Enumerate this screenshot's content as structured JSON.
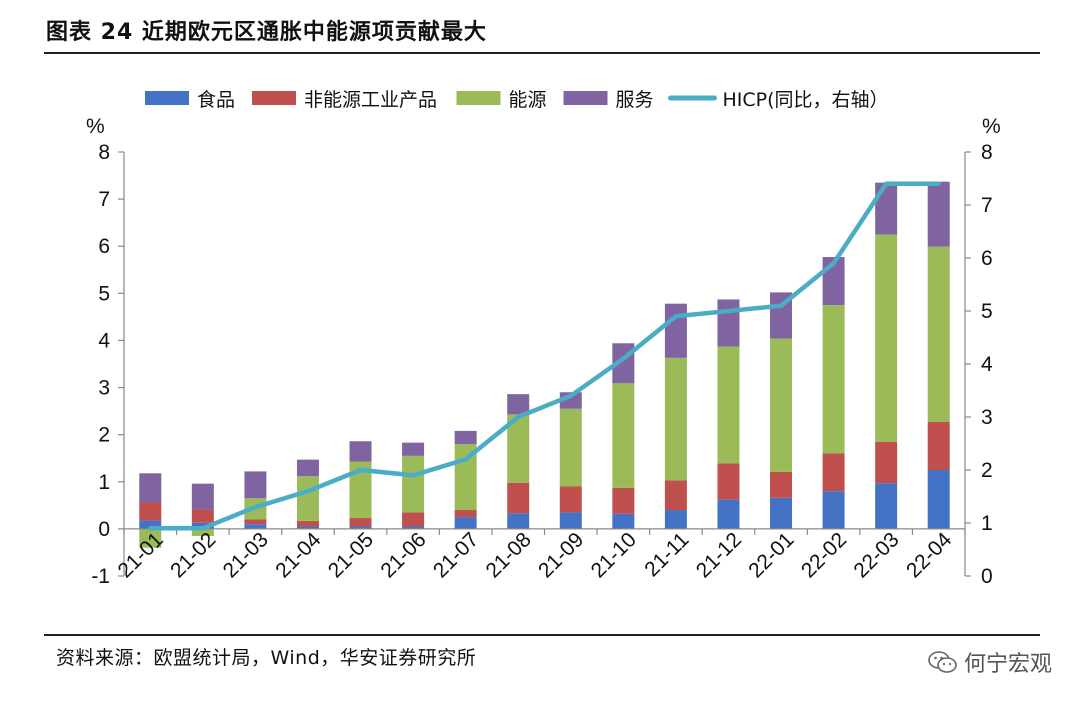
{
  "header": {
    "title": "图表 24  近期欧元区通胀中能源项贡献最大"
  },
  "footer": {
    "source": "资料来源：欧盟统计局，Wind，华安证券研究所",
    "watermark": "何宁宏观"
  },
  "colors": {
    "food": "#4472C4",
    "industrial": "#C0504D",
    "energy": "#9BBB59",
    "services": "#8064A2",
    "hicp": "#4BACC6"
  },
  "chart_data": {
    "type": "bar",
    "stacked": true,
    "categories": [
      "21-01",
      "21-02",
      "21-03",
      "21-04",
      "21-05",
      "21-06",
      "21-07",
      "21-08",
      "21-09",
      "21-10",
      "21-11",
      "21-12",
      "22-01",
      "22-02",
      "22-03",
      "22-04"
    ],
    "series": [
      {
        "name": "食品",
        "values": [
          0.18,
          0.13,
          0.1,
          0.05,
          0.05,
          0.05,
          0.25,
          0.33,
          0.35,
          0.32,
          0.4,
          0.62,
          0.66,
          0.8,
          0.97,
          1.25
        ]
      },
      {
        "name": "非能源工业产品",
        "values": [
          0.38,
          0.28,
          0.1,
          0.12,
          0.18,
          0.3,
          0.15,
          0.65,
          0.55,
          0.55,
          0.63,
          0.77,
          0.55,
          0.8,
          0.88,
          1.02
        ]
      },
      {
        "name": "能源",
        "values": [
          -0.4,
          -0.15,
          0.45,
          0.95,
          1.2,
          1.2,
          1.4,
          1.45,
          1.65,
          2.22,
          2.6,
          2.48,
          2.83,
          3.15,
          4.4,
          3.72
        ]
      },
      {
        "name": "服务",
        "values": [
          0.62,
          0.55,
          0.57,
          0.35,
          0.43,
          0.28,
          0.28,
          0.43,
          0.35,
          0.85,
          1.15,
          1.0,
          0.98,
          1.02,
          1.1,
          1.38
        ]
      }
    ],
    "line": {
      "name": "HICP(同比，右轴）",
      "axis": "right",
      "values": [
        0.9,
        0.9,
        1.3,
        1.6,
        2.0,
        1.9,
        2.2,
        3.0,
        3.4,
        4.1,
        4.9,
        5.0,
        5.1,
        5.9,
        7.4,
        7.4
      ]
    },
    "left_axis": {
      "unit": "%",
      "ylim": [
        -1,
        8
      ],
      "ticks": [
        -1,
        0,
        1,
        2,
        3,
        4,
        5,
        6,
        7,
        8
      ]
    },
    "right_axis": {
      "unit": "%",
      "ylim": [
        0,
        8
      ],
      "ticks": [
        0,
        1,
        2,
        3,
        4,
        5,
        6,
        7,
        8
      ]
    },
    "legend": [
      "食品",
      "非能源工业产品",
      "能源",
      "服务",
      "HICP(同比，右轴）"
    ],
    "legend_position": "top"
  }
}
